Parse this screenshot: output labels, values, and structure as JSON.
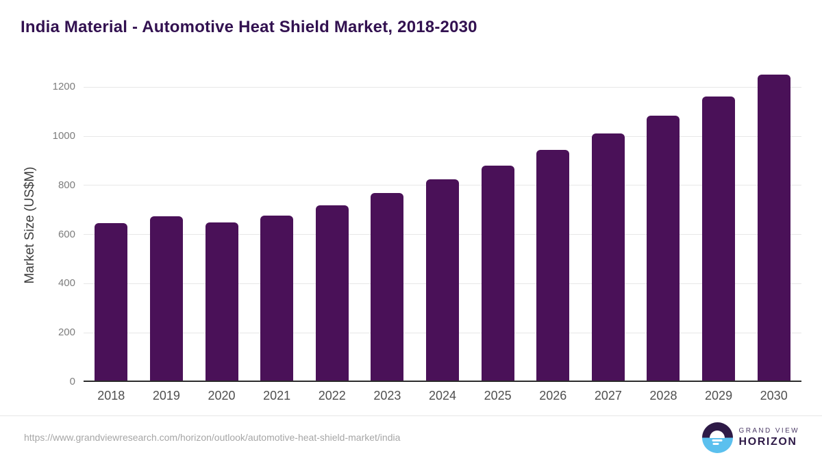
{
  "header": {
    "title": "India Material - Automotive Heat Shield Market, 2018-2030"
  },
  "chart_data": {
    "type": "bar",
    "title": "India Material - Automotive Heat Shield Market, 2018-2030",
    "categories": [
      "2018",
      "2019",
      "2020",
      "2021",
      "2022",
      "2023",
      "2024",
      "2025",
      "2026",
      "2027",
      "2028",
      "2029",
      "2030"
    ],
    "values": [
      640,
      669,
      645,
      671,
      714,
      764,
      818,
      876,
      939,
      1007,
      1079,
      1156,
      1245
    ],
    "xlabel": "",
    "ylabel": "Market Size (US$M)",
    "ylim": [
      0,
      1276
    ],
    "yticks": [
      0,
      200,
      400,
      600,
      800,
      1000,
      1200
    ],
    "grid": "horizontal",
    "legend": "none",
    "bar_color": "#4a1158"
  },
  "footer": {
    "source_url": "https://www.grandviewresearch.com/horizon/outlook/automotive-heat-shield-market/india",
    "logo_top": "GRAND VIEW",
    "logo_bottom": "HORIZON"
  },
  "colors": {
    "title": "#321150",
    "bar": "#4a1158",
    "axis_line": "#2b2b2b",
    "gridline": "#e7e7e7",
    "y_tick_text": "#7d7d7d",
    "x_tick_text": "#4f4f4f",
    "url_text": "#a6a6a6",
    "logo_purple": "#2e1a47",
    "logo_blue": "#5bc0ee"
  }
}
